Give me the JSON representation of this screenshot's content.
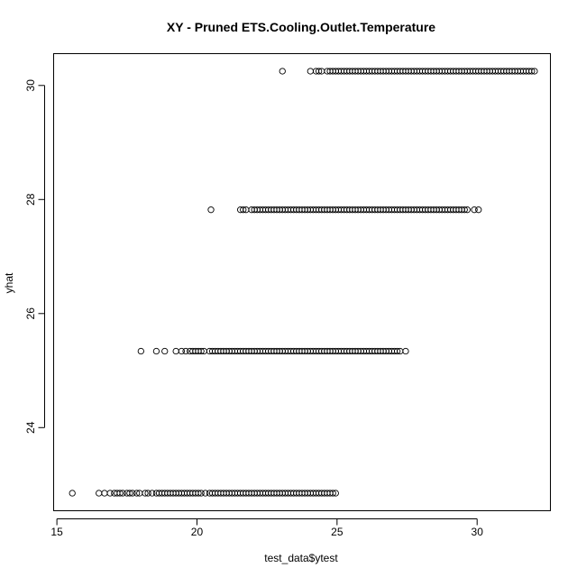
{
  "chart_data": {
    "type": "scatter",
    "title": "XY - Pruned ETS.Cooling.Outlet.Temperature",
    "xlabel": "test_data$ytest",
    "ylabel": "yhat",
    "xlim": [
      14.9,
      32.6
    ],
    "ylim": [
      22.55,
      30.55
    ],
    "x_ticks": [
      15,
      20,
      25,
      30
    ],
    "y_ticks": [
      24,
      26,
      28,
      30
    ],
    "grid": false,
    "legend": "none",
    "marker": "open-circle",
    "series": [
      {
        "y": 30.25,
        "x": [
          23.05,
          24.05,
          24.25,
          24.35,
          24.45,
          24.65,
          24.75,
          24.85,
          24.95,
          25.05,
          25.15,
          25.25,
          25.35,
          25.45,
          25.55,
          25.65,
          25.75,
          25.85,
          25.95,
          26.05,
          26.15,
          26.25,
          26.35,
          26.45,
          26.55,
          26.65,
          26.75,
          26.85,
          26.95,
          27.05,
          27.15,
          27.25,
          27.35,
          27.45,
          27.55,
          27.65,
          27.75,
          27.85,
          27.95,
          28.05,
          28.15,
          28.25,
          28.35,
          28.45,
          28.55,
          28.65,
          28.75,
          28.85,
          28.95,
          29.05,
          29.15,
          29.25,
          29.35,
          29.45,
          29.55,
          29.65,
          29.75,
          29.85,
          29.95,
          30.05,
          30.15,
          30.25,
          30.35,
          30.45,
          30.55,
          30.65,
          30.75,
          30.85,
          30.95,
          31.05,
          31.15,
          31.25,
          31.35,
          31.45,
          31.55,
          31.65,
          31.75,
          31.85,
          31.95,
          32.05
        ]
      },
      {
        "y": 27.82,
        "x": [
          20.5,
          21.55,
          21.65,
          21.75,
          21.95,
          22.05,
          22.15,
          22.25,
          22.35,
          22.45,
          22.55,
          22.65,
          22.75,
          22.85,
          22.95,
          23.05,
          23.15,
          23.25,
          23.35,
          23.45,
          23.55,
          23.65,
          23.75,
          23.85,
          23.95,
          24.05,
          24.15,
          24.25,
          24.35,
          24.45,
          24.55,
          24.65,
          24.75,
          24.85,
          24.95,
          25.05,
          25.15,
          25.25,
          25.35,
          25.45,
          25.55,
          25.65,
          25.75,
          25.85,
          25.95,
          26.05,
          26.15,
          26.25,
          26.35,
          26.45,
          26.55,
          26.65,
          26.75,
          26.85,
          26.95,
          27.05,
          27.15,
          27.25,
          27.35,
          27.45,
          27.55,
          27.65,
          27.75,
          27.85,
          27.95,
          28.05,
          28.15,
          28.25,
          28.35,
          28.45,
          28.55,
          28.65,
          28.75,
          28.85,
          28.95,
          29.05,
          29.15,
          29.25,
          29.35,
          29.45,
          29.55,
          29.65,
          29.9,
          30.05
        ]
      },
      {
        "y": 25.34,
        "x": [
          18.0,
          18.55,
          18.85,
          19.25,
          19.45,
          19.6,
          19.75,
          19.85,
          19.95,
          20.05,
          20.15,
          20.25,
          20.45,
          20.55,
          20.65,
          20.75,
          20.85,
          20.95,
          21.05,
          21.15,
          21.25,
          21.35,
          21.45,
          21.55,
          21.65,
          21.75,
          21.85,
          21.95,
          22.05,
          22.15,
          22.25,
          22.35,
          22.45,
          22.55,
          22.65,
          22.75,
          22.85,
          22.95,
          23.05,
          23.15,
          23.25,
          23.35,
          23.45,
          23.55,
          23.65,
          23.75,
          23.85,
          23.95,
          24.05,
          24.15,
          24.25,
          24.35,
          24.45,
          24.55,
          24.65,
          24.75,
          24.85,
          24.95,
          25.05,
          25.15,
          25.25,
          25.35,
          25.45,
          25.55,
          25.65,
          25.75,
          25.85,
          25.95,
          26.05,
          26.15,
          26.25,
          26.35,
          26.45,
          26.55,
          26.65,
          26.75,
          26.85,
          26.95,
          27.05,
          27.15,
          27.25,
          27.45
        ]
      },
      {
        "y": 22.85,
        "x": [
          15.55,
          16.5,
          16.7,
          16.9,
          17.05,
          17.15,
          17.25,
          17.35,
          17.5,
          17.6,
          17.7,
          17.85,
          17.95,
          18.15,
          18.25,
          18.4,
          18.55,
          18.65,
          18.75,
          18.85,
          18.95,
          19.05,
          19.15,
          19.25,
          19.35,
          19.45,
          19.55,
          19.65,
          19.75,
          19.85,
          19.95,
          20.05,
          20.15,
          20.3,
          20.45,
          20.55,
          20.65,
          20.75,
          20.85,
          20.95,
          21.05,
          21.15,
          21.25,
          21.35,
          21.45,
          21.55,
          21.65,
          21.75,
          21.85,
          21.95,
          22.05,
          22.15,
          22.25,
          22.35,
          22.45,
          22.55,
          22.65,
          22.75,
          22.85,
          22.95,
          23.05,
          23.15,
          23.25,
          23.35,
          23.45,
          23.55,
          23.65,
          23.75,
          23.85,
          23.95,
          24.05,
          24.15,
          24.25,
          24.35,
          24.45,
          24.55,
          24.65,
          24.75,
          24.85,
          24.95
        ]
      }
    ]
  }
}
